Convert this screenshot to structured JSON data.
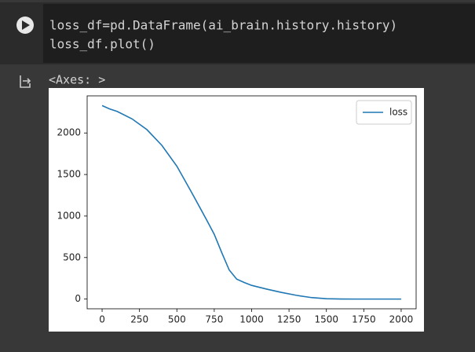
{
  "code": {
    "lines": [
      "loss_df=pd.DataFrame(ai_brain.history.history)",
      "loss_df.plot()"
    ]
  },
  "output": {
    "text": "<Axes: >"
  },
  "chart_data": {
    "type": "line",
    "x": [
      0,
      50,
      100,
      200,
      300,
      400,
      500,
      600,
      700,
      750,
      800,
      850,
      900,
      950,
      1000,
      1100,
      1200,
      1300,
      1400,
      1500,
      1600,
      1700,
      1800,
      1900,
      2000
    ],
    "series": [
      {
        "name": "loss",
        "color": "#1f77b4",
        "values": [
          2330,
          2290,
          2260,
          2170,
          2040,
          1850,
          1600,
          1280,
          950,
          780,
          560,
          350,
          240,
          200,
          165,
          120,
          80,
          45,
          18,
          4,
          1,
          0,
          0,
          0,
          0
        ]
      }
    ],
    "xlim": [
      -100,
      2100
    ],
    "ylim": [
      -117,
      2447
    ],
    "xticks": [
      0,
      250,
      500,
      750,
      1000,
      1250,
      1500,
      1750,
      2000
    ],
    "yticks": [
      0,
      500,
      1000,
      1500,
      2000
    ],
    "grid": false,
    "legend": "upper right"
  }
}
